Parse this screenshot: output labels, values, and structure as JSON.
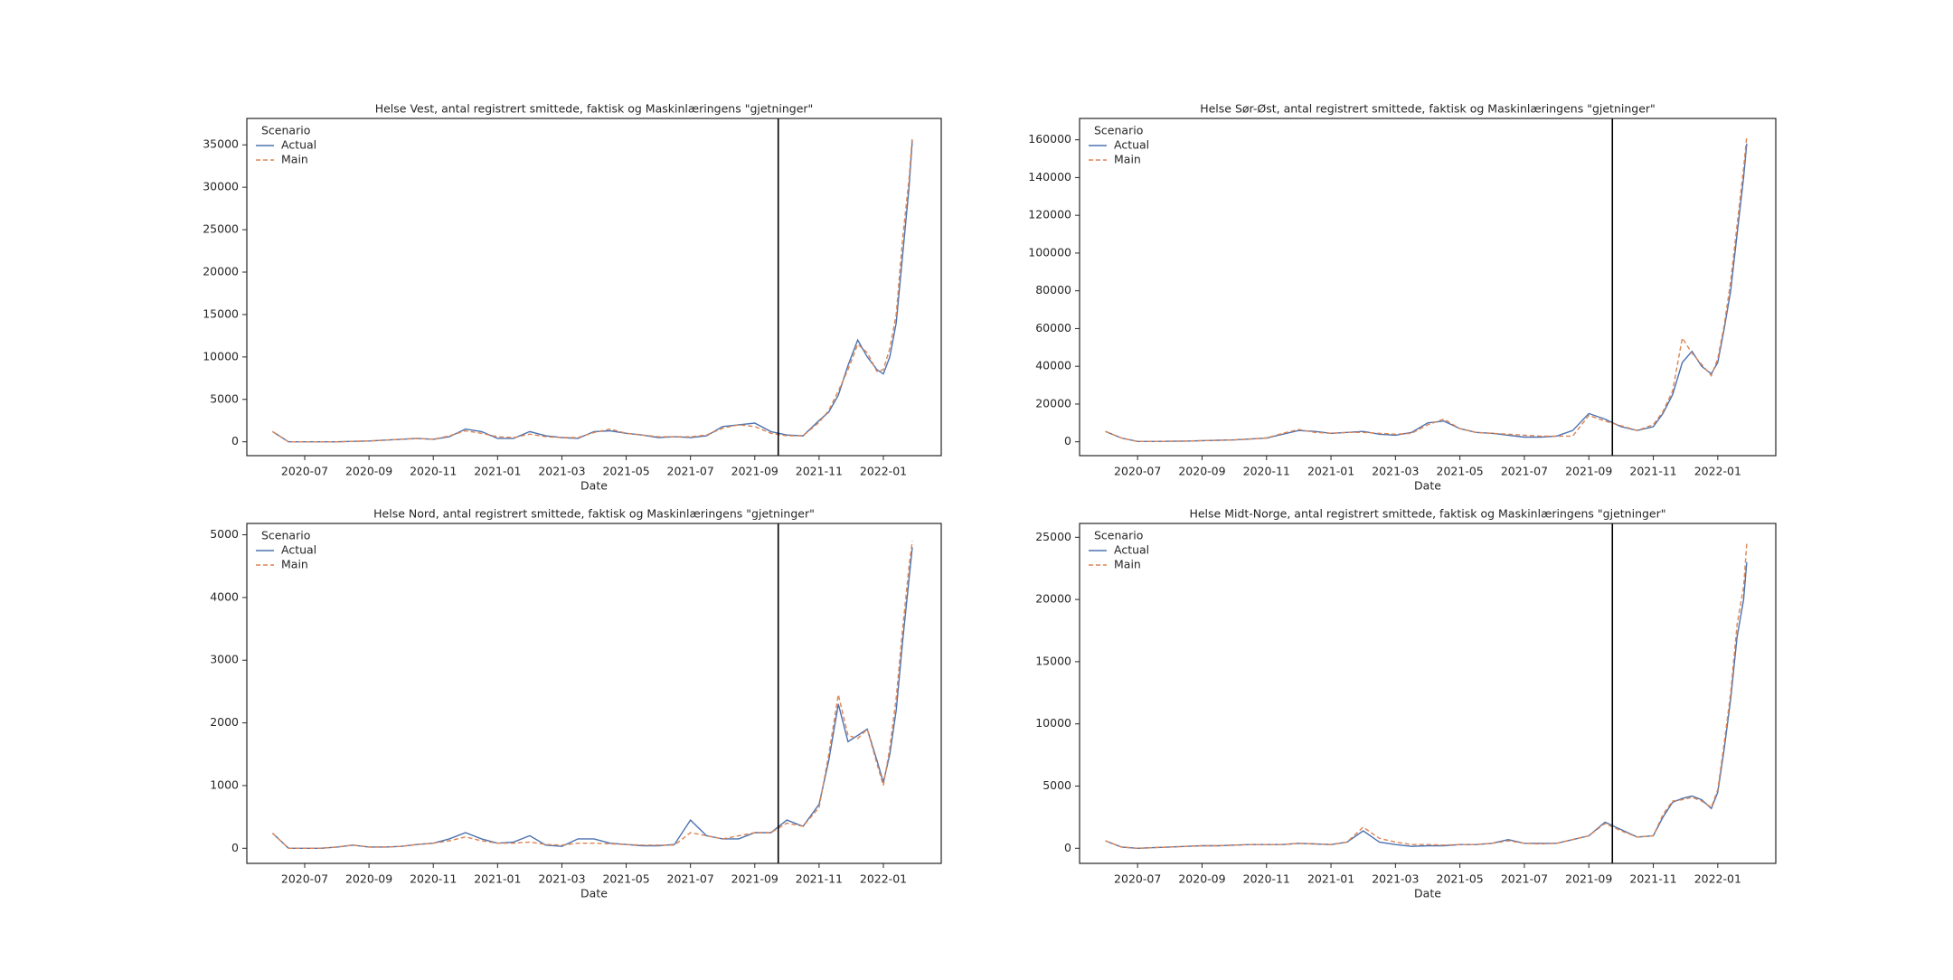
{
  "chart_data": [
    {
      "type": "line",
      "title": "Helse Vest, antal registrert smittede, faktisk og Maskinlæringens \"gjetninger\"",
      "x_label": "Date",
      "legend_title": "Scenario",
      "legend": "upper left",
      "x": [
        5.0,
        5.5,
        6,
        6.5,
        7,
        7.5,
        8,
        8.5,
        9,
        9.5,
        10,
        10.5,
        11,
        11.5,
        12,
        12.5,
        13,
        13.5,
        14,
        14.5,
        15,
        15.5,
        16,
        16.5,
        17,
        17.5,
        18,
        18.5,
        19,
        19.5,
        20,
        20.5,
        21,
        21.5,
        22,
        22.3,
        22.6,
        22.9,
        23.2,
        23.5,
        23.8,
        24.0,
        24.2,
        24.4,
        24.6,
        24.8,
        24.9
      ],
      "xlim": [
        4.2,
        25.8
      ],
      "xticks": [
        {
          "value": 6,
          "label": "2020-07"
        },
        {
          "value": 8,
          "label": "2020-09"
        },
        {
          "value": 10,
          "label": "2020-11"
        },
        {
          "value": 12,
          "label": "2021-01"
        },
        {
          "value": 14,
          "label": "2021-03"
        },
        {
          "value": 16,
          "label": "2021-05"
        },
        {
          "value": 18,
          "label": "2021-07"
        },
        {
          "value": 20,
          "label": "2021-09"
        },
        {
          "value": 22,
          "label": "2021-11"
        },
        {
          "value": 24,
          "label": "2022-01"
        }
      ],
      "ylim": [
        -1631,
        38114
      ],
      "yticks": [
        0,
        5000,
        10000,
        15000,
        20000,
        25000,
        30000,
        35000
      ],
      "vline_x": 20.73,
      "series": [
        {
          "name": "Actual",
          "color": "#4c72b0",
          "dash": false,
          "values": [
            1200,
            0,
            0,
            0,
            0,
            50,
            100,
            200,
            300,
            400,
            300,
            600,
            1500,
            1200,
            400,
            400,
            1200,
            700,
            500,
            400,
            1200,
            1300,
            1000,
            800,
            500,
            600,
            500,
            700,
            1800,
            2000,
            2200,
            1200,
            800,
            700,
            2500,
            3500,
            5500,
            9000,
            12000,
            10000,
            8500,
            8000,
            10000,
            14000,
            22000,
            30000,
            35500
          ]
        },
        {
          "name": "Main",
          "color": "#dd8452",
          "dash": true,
          "values": [
            1200,
            0,
            0,
            0,
            0,
            50,
            100,
            200,
            300,
            400,
            300,
            700,
            1300,
            1000,
            600,
            500,
            900,
            600,
            500,
            500,
            1100,
            1500,
            1000,
            800,
            600,
            600,
            600,
            800,
            1600,
            2000,
            1800,
            1000,
            700,
            700,
            2300,
            3700,
            6000,
            8500,
            11500,
            10500,
            8300,
            8500,
            11000,
            15000,
            24000,
            31000,
            36000
          ]
        }
      ]
    },
    {
      "type": "line",
      "title": "Helse Sør-Øst, antal registrert smittede, faktisk og Maskinlæringens \"gjetninger\"",
      "x_label": "Date",
      "legend_title": "Scenario",
      "legend": "upper left",
      "x": [
        5.0,
        5.5,
        6,
        6.5,
        7,
        7.5,
        8,
        8.5,
        9,
        9.5,
        10,
        10.5,
        11,
        11.5,
        12,
        12.5,
        13,
        13.5,
        14,
        14.5,
        15,
        15.5,
        16,
        16.5,
        17,
        17.5,
        18,
        18.5,
        19,
        19.5,
        20,
        20.5,
        21,
        21.5,
        22,
        22.3,
        22.6,
        22.9,
        23.2,
        23.5,
        23.8,
        24.0,
        24.2,
        24.4,
        24.6,
        24.8,
        24.9
      ],
      "xlim": [
        4.2,
        25.8
      ],
      "xticks": [
        {
          "value": 6,
          "label": "2020-07"
        },
        {
          "value": 8,
          "label": "2020-09"
        },
        {
          "value": 10,
          "label": "2020-11"
        },
        {
          "value": 12,
          "label": "2021-01"
        },
        {
          "value": 14,
          "label": "2021-03"
        },
        {
          "value": 16,
          "label": "2021-05"
        },
        {
          "value": 18,
          "label": "2021-07"
        },
        {
          "value": 20,
          "label": "2021-09"
        },
        {
          "value": 22,
          "label": "2021-11"
        },
        {
          "value": 24,
          "label": "2022-01"
        }
      ],
      "ylim": [
        -7333,
        171333
      ],
      "yticks": [
        0,
        20000,
        40000,
        60000,
        80000,
        100000,
        120000,
        140000,
        160000
      ],
      "vline_x": 20.73,
      "series": [
        {
          "name": "Actual",
          "color": "#4c72b0",
          "dash": false,
          "values": [
            5500,
            2000,
            200,
            200,
            300,
            400,
            600,
            800,
            1000,
            1500,
            2000,
            4000,
            6000,
            5500,
            4500,
            5000,
            5500,
            4000,
            3500,
            5000,
            10000,
            11000,
            7000,
            5000,
            4500,
            3500,
            2500,
            2500,
            3000,
            6000,
            15000,
            12000,
            8000,
            6000,
            8000,
            15000,
            25000,
            42000,
            48000,
            40000,
            36000,
            42000,
            60000,
            80000,
            110000,
            140000,
            158000
          ]
        },
        {
          "name": "Main",
          "color": "#dd8452",
          "dash": true,
          "values": [
            5500,
            2000,
            200,
            200,
            300,
            400,
            600,
            800,
            1000,
            1500,
            2000,
            4500,
            6500,
            5000,
            4500,
            5000,
            5000,
            4500,
            4000,
            4500,
            9000,
            12000,
            7000,
            5000,
            4500,
            4000,
            3500,
            3000,
            3000,
            3000,
            14000,
            11000,
            8500,
            6000,
            9000,
            16000,
            27000,
            55000,
            47000,
            41000,
            35000,
            44000,
            62000,
            85000,
            115000,
            145000,
            162000
          ]
        }
      ]
    },
    {
      "type": "line",
      "title": "Helse Nord, antal registrert smittede, faktisk og Maskinlæringens \"gjetninger\"",
      "x_label": "Date",
      "legend_title": "Scenario",
      "legend": "upper left",
      "x": [
        5.0,
        5.5,
        6,
        6.5,
        7,
        7.5,
        8,
        8.5,
        9,
        9.5,
        10,
        10.5,
        11,
        11.5,
        12,
        12.5,
        13,
        13.5,
        14,
        14.5,
        15,
        15.5,
        16,
        16.5,
        17,
        17.5,
        18,
        18.5,
        19,
        19.5,
        20,
        20.5,
        21,
        21.5,
        22,
        22.3,
        22.6,
        22.9,
        23.2,
        23.5,
        23.8,
        24.0,
        24.2,
        24.4,
        24.6,
        24.8,
        24.9
      ],
      "xlim": [
        4.2,
        25.8
      ],
      "xticks": [
        {
          "value": 6,
          "label": "2020-07"
        },
        {
          "value": 8,
          "label": "2020-09"
        },
        {
          "value": 10,
          "label": "2020-11"
        },
        {
          "value": 12,
          "label": "2021-01"
        },
        {
          "value": 14,
          "label": "2021-03"
        },
        {
          "value": 16,
          "label": "2021-05"
        },
        {
          "value": 18,
          "label": "2021-07"
        },
        {
          "value": 20,
          "label": "2021-09"
        },
        {
          "value": 22,
          "label": "2021-11"
        },
        {
          "value": 24,
          "label": "2022-01"
        }
      ],
      "ylim": [
        -241,
        5181
      ],
      "yticks": [
        0,
        1000,
        2000,
        3000,
        4000,
        5000
      ],
      "vline_x": 20.73,
      "series": [
        {
          "name": "Actual",
          "color": "#4c72b0",
          "dash": false,
          "values": [
            240,
            0,
            0,
            0,
            20,
            50,
            20,
            20,
            30,
            60,
            80,
            150,
            250,
            150,
            80,
            100,
            200,
            50,
            30,
            150,
            150,
            80,
            60,
            40,
            40,
            60,
            450,
            200,
            150,
            150,
            250,
            250,
            450,
            350,
            700,
            1400,
            2300,
            1700,
            1800,
            1900,
            1400,
            1050,
            1500,
            2200,
            3300,
            4300,
            4800
          ]
        },
        {
          "name": "Main",
          "color": "#dd8452",
          "dash": true,
          "values": [
            240,
            0,
            0,
            0,
            20,
            50,
            20,
            20,
            30,
            60,
            80,
            120,
            180,
            120,
            80,
            80,
            100,
            60,
            50,
            80,
            80,
            70,
            60,
            50,
            50,
            50,
            250,
            200,
            150,
            200,
            250,
            250,
            400,
            350,
            650,
            1500,
            2450,
            1800,
            1750,
            1900,
            1350,
            1000,
            1600,
            2400,
            3500,
            4500,
            4900
          ]
        }
      ]
    },
    {
      "type": "line",
      "title": "Helse Midt-Norge, antal registrert smittede, faktisk og Maskinlæringens \"gjetninger\"",
      "x_label": "Date",
      "legend_title": "Scenario",
      "legend": "upper left",
      "x": [
        5.0,
        5.5,
        6,
        6.5,
        7,
        7.5,
        8,
        8.5,
        9,
        9.5,
        10,
        10.5,
        11,
        11.5,
        12,
        12.5,
        13,
        13.5,
        14,
        14.5,
        15,
        15.5,
        16,
        16.5,
        17,
        17.5,
        18,
        18.5,
        19,
        19.5,
        20,
        20.5,
        21,
        21.5,
        22,
        22.3,
        22.6,
        22.9,
        23.2,
        23.5,
        23.8,
        24.0,
        24.2,
        24.4,
        24.6,
        24.8,
        24.9
      ],
      "xlim": [
        4.2,
        25.8
      ],
      "xticks": [
        {
          "value": 6,
          "label": "2020-07"
        },
        {
          "value": 8,
          "label": "2020-09"
        },
        {
          "value": 10,
          "label": "2020-11"
        },
        {
          "value": 12,
          "label": "2021-01"
        },
        {
          "value": 14,
          "label": "2021-03"
        },
        {
          "value": 16,
          "label": "2021-05"
        },
        {
          "value": 18,
          "label": "2021-07"
        },
        {
          "value": 20,
          "label": "2021-09"
        },
        {
          "value": 22,
          "label": "2021-11"
        },
        {
          "value": 24,
          "label": "2022-01"
        }
      ],
      "ylim": [
        -1215,
        26113
      ],
      "yticks": [
        0,
        5000,
        10000,
        15000,
        20000,
        25000
      ],
      "vline_x": 20.73,
      "series": [
        {
          "name": "Actual",
          "color": "#4c72b0",
          "dash": false,
          "values": [
            600,
            100,
            0,
            50,
            100,
            150,
            200,
            200,
            250,
            300,
            300,
            300,
            400,
            350,
            300,
            500,
            1400,
            500,
            300,
            150,
            200,
            200,
            300,
            300,
            400,
            700,
            400,
            400,
            400,
            700,
            1000,
            2100,
            1500,
            900,
            1000,
            2500,
            3700,
            4000,
            4200,
            3900,
            3200,
            4500,
            8000,
            12000,
            17000,
            20000,
            23000
          ]
        },
        {
          "name": "Main",
          "color": "#dd8452",
          "dash": true,
          "values": [
            600,
            100,
            0,
            50,
            100,
            150,
            200,
            200,
            250,
            300,
            300,
            300,
            400,
            350,
            300,
            500,
            1700,
            800,
            500,
            300,
            300,
            250,
            300,
            300,
            400,
            600,
            400,
            350,
            400,
            700,
            1000,
            2000,
            1400,
            900,
            1000,
            2700,
            3800,
            3900,
            4100,
            3800,
            3300,
            4700,
            8500,
            12500,
            18000,
            21000,
            24500
          ]
        }
      ]
    }
  ]
}
